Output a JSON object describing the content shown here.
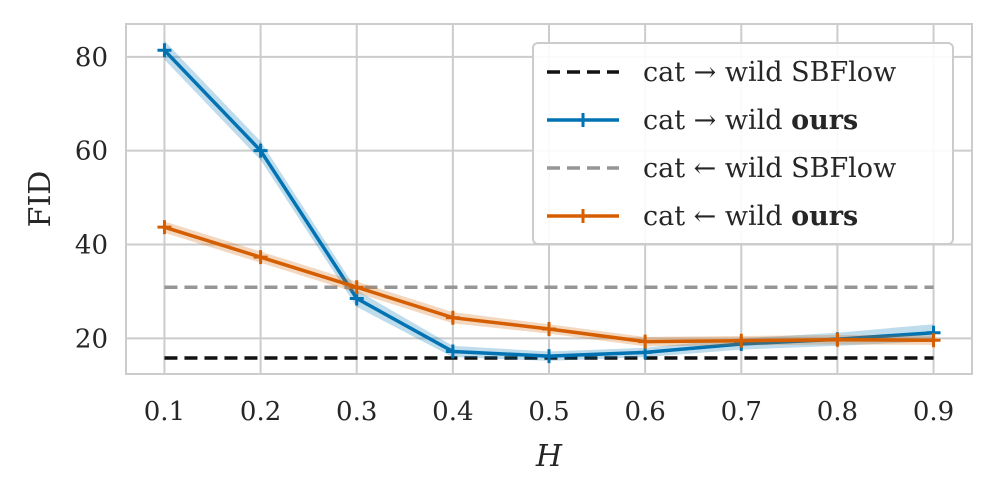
{
  "chart_data": {
    "type": "line",
    "xlabel": "H",
    "ylabel": "FID",
    "x": [
      0.1,
      0.2,
      0.3,
      0.4,
      0.5,
      0.6,
      0.7,
      0.8,
      0.9
    ],
    "xticks": [
      "0.1",
      "0.2",
      "0.3",
      "0.4",
      "0.5",
      "0.6",
      "0.7",
      "0.8",
      "0.9"
    ],
    "yticks": [
      "20",
      "40",
      "60",
      "80"
    ],
    "ytick_values": [
      20,
      40,
      60,
      80
    ],
    "xlim": [
      0.06,
      0.94
    ],
    "ylim": [
      12.4,
      87.0
    ],
    "grid": true,
    "legend_position": "top-right",
    "series": [
      {
        "name": "cat → wild SBFlow",
        "label_plain": "cat → wild SBFlow",
        "label_bold": "",
        "style": "dashed",
        "color": "#111111",
        "values": [
          15.8,
          15.8,
          15.8,
          15.8,
          15.8,
          15.8,
          15.8,
          15.8,
          15.8
        ]
      },
      {
        "name": "cat → wild ours",
        "label_plain": "cat → wild ",
        "label_bold": "ours",
        "style": "solid-plus",
        "color": "#0173b2",
        "values": [
          81.4,
          60.0,
          28.5,
          17.2,
          16.2,
          17.0,
          18.8,
          19.8,
          21.2
        ],
        "band": [
          2.0,
          2.0,
          1.8,
          1.2,
          1.0,
          1.0,
          1.2,
          1.4,
          1.8
        ]
      },
      {
        "name": "cat ← wild SBFlow",
        "label_plain": "cat ← wild SBFlow",
        "label_bold": "",
        "style": "dashed",
        "color": "#969696",
        "values": [
          30.9,
          30.9,
          30.9,
          30.9,
          30.9,
          30.9,
          30.9,
          30.9,
          30.9
        ]
      },
      {
        "name": "cat ← wild ours",
        "label_plain": "cat ← wild ",
        "label_bold": "ours",
        "style": "solid-plus",
        "color": "#d55e00",
        "values": [
          43.7,
          37.3,
          30.9,
          24.4,
          22.0,
          19.3,
          19.5,
          19.7,
          19.6
        ],
        "band": [
          1.2,
          1.2,
          1.2,
          1.2,
          1.0,
          1.0,
          1.0,
          1.0,
          1.0
        ]
      }
    ]
  }
}
